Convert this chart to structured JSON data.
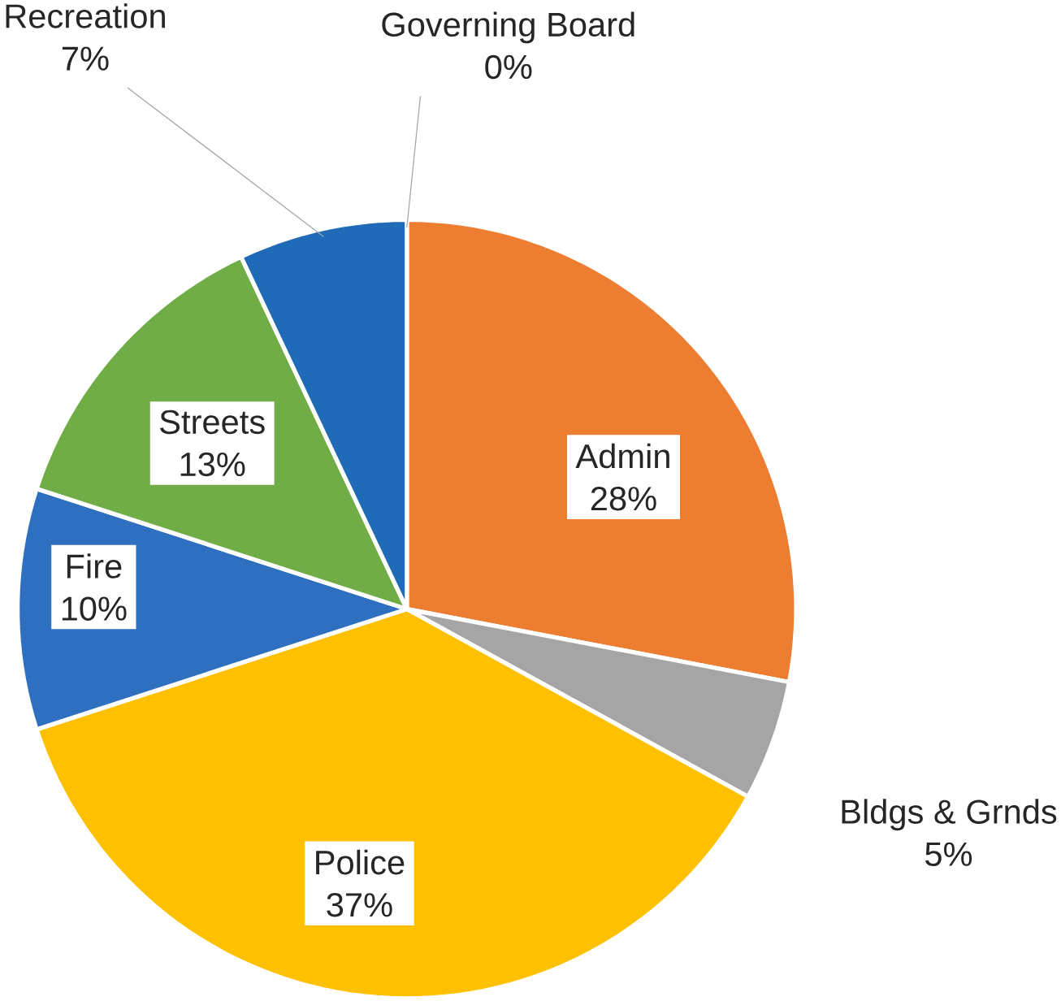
{
  "chart_data": {
    "type": "pie",
    "categories": [
      "Governing Board",
      "Admin",
      "Bldgs & Grnds",
      "Police",
      "Fire",
      "Streets",
      "Recreation"
    ],
    "values": [
      0,
      28,
      5,
      37,
      10,
      13,
      7
    ],
    "value_labels": [
      "0%",
      "28%",
      "5%",
      "37%",
      "10%",
      "13%",
      "7%"
    ],
    "colors": [
      "#2e75b6",
      "#ed7d31",
      "#a5a5a5",
      "#ffc000",
      "#2f6fc0",
      "#70ad47",
      "#1f6bb8"
    ]
  }
}
